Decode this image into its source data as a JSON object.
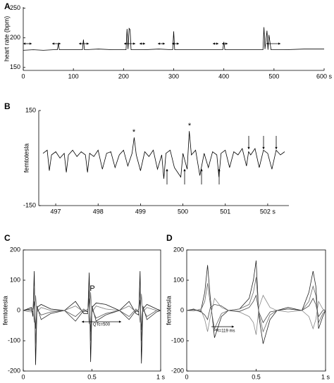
{
  "chart_data": [
    {
      "type": "line",
      "panel": "A",
      "y_label": "heart rate (bpm)",
      "color": "#000000",
      "x": [
        0,
        20,
        40,
        60,
        68,
        70,
        72,
        100,
        118,
        120,
        122,
        150,
        180,
        205,
        207,
        209,
        211,
        213,
        215,
        240,
        270,
        298,
        300,
        302,
        340,
        380,
        398,
        400,
        402,
        440,
        470,
        478,
        480,
        482,
        486,
        488,
        490,
        494,
        520,
        560,
        598,
        600
      ],
      "values": [
        179,
        180,
        179,
        180,
        180,
        190,
        180,
        180,
        180,
        197,
        180,
        181,
        180,
        180,
        215,
        181,
        216,
        214,
        180,
        180,
        181,
        180,
        211,
        180,
        180,
        180,
        180,
        193,
        180,
        180,
        180,
        180,
        218,
        181,
        212,
        180,
        205,
        180,
        180,
        181,
        181,
        181
      ],
      "xlim": [
        0,
        600
      ],
      "ylim": [
        145,
        252
      ],
      "xticks": [
        0,
        100,
        200,
        300,
        400,
        500,
        {
          "value": 600,
          "label": "600 s"
        }
      ],
      "yticks": [
        150,
        200,
        250
      ]
    },
    {
      "type": "line",
      "panel": "B",
      "y_label": "femtotesla",
      "color": "#000000",
      "annotations": [
        "*",
        "*"
      ],
      "x": [
        496.7,
        496.8,
        496.85,
        496.9,
        497.0,
        497.1,
        497.2,
        497.25,
        497.3,
        497.4,
        497.5,
        497.6,
        497.7,
        497.75,
        497.8,
        497.9,
        498.0,
        498.1,
        498.2,
        498.3,
        498.4,
        498.5,
        498.6,
        498.7,
        498.8,
        498.85,
        498.9,
        499.0,
        499.1,
        499.2,
        499.3,
        499.4,
        499.5,
        499.55,
        499.6,
        499.7,
        499.8,
        499.95,
        500.0,
        500.1,
        500.15,
        500.2,
        500.3,
        500.4,
        500.5,
        500.6,
        500.7,
        500.8,
        500.85,
        500.9,
        501.0,
        501.1,
        501.2,
        501.3,
        501.4,
        501.5,
        501.55,
        501.6,
        501.7,
        501.8,
        501.9,
        502.0,
        502.1,
        502.2,
        502.3,
        502.4
      ],
      "values": [
        15,
        25,
        -40,
        10,
        20,
        0,
        15,
        -45,
        10,
        25,
        5,
        20,
        10,
        -45,
        15,
        5,
        25,
        -35,
        15,
        20,
        -30,
        10,
        25,
        -25,
        15,
        65,
        10,
        -40,
        20,
        5,
        25,
        -35,
        10,
        -65,
        15,
        25,
        -30,
        -60,
        15,
        -35,
        85,
        10,
        25,
        -55,
        15,
        -30,
        20,
        10,
        -60,
        15,
        25,
        -30,
        20,
        10,
        30,
        -25,
        20,
        10,
        30,
        -30,
        25,
        15,
        -35,
        25,
        10,
        20
      ],
      "xlim": [
        496.6,
        502.5
      ],
      "ylim": [
        -150,
        150
      ],
      "xticks": [
        497,
        498,
        499,
        500,
        501,
        {
          "value": 502,
          "label": "502 s"
        }
      ],
      "yticks": [
        150,
        -150
      ]
    },
    {
      "type": "line",
      "panel": "C",
      "y_label": "femtotesla",
      "annotations": [
        "P",
        "QTc=500"
      ],
      "x": [
        0,
        0.03,
        0.06,
        0.07,
        0.08,
        0.09,
        0.1,
        0.13,
        0.2,
        0.3,
        0.38,
        0.44,
        0.47,
        0.48,
        0.49,
        0.5,
        0.53,
        0.6,
        0.7,
        0.77,
        0.82,
        0.84,
        0.85,
        0.86,
        0.87,
        0.9,
        0.97,
        1
      ],
      "series": [
        {
          "color": "#111111",
          "values": [
            0,
            5,
            10,
            -20,
            130,
            -180,
            10,
            20,
            5,
            0,
            30,
            -10,
            -10,
            125,
            -170,
            10,
            25,
            20,
            0,
            30,
            -10,
            -15,
            130,
            -175,
            5,
            20,
            5,
            0
          ]
        },
        {
          "color": "#555555",
          "values": [
            0,
            3,
            5,
            -10,
            80,
            -110,
            5,
            -15,
            -5,
            0,
            -20,
            5,
            -5,
            70,
            -100,
            5,
            -25,
            -10,
            0,
            -20,
            5,
            -5,
            75,
            -100,
            5,
            -20,
            0,
            0
          ]
        },
        {
          "color": "#777777",
          "values": [
            0,
            -3,
            -5,
            10,
            -40,
            50,
            -5,
            10,
            0,
            0,
            15,
            -5,
            5,
            -45,
            60,
            -5,
            15,
            5,
            0,
            15,
            -5,
            5,
            -40,
            55,
            -5,
            10,
            0,
            0
          ]
        },
        {
          "color": "#333333",
          "values": [
            0,
            2,
            0,
            -5,
            30,
            -60,
            15,
            -30,
            -10,
            0,
            -35,
            0,
            -5,
            40,
            -70,
            15,
            -35,
            -15,
            0,
            -30,
            0,
            -5,
            35,
            -65,
            15,
            -30,
            -5,
            0
          ]
        }
      ],
      "xlim": [
        0,
        1
      ],
      "ylim": [
        -200,
        200
      ],
      "xticks": [
        0,
        0.5,
        {
          "value": 1,
          "label": "1 s"
        }
      ],
      "yticks": [
        -200,
        -100,
        0,
        100,
        200
      ]
    },
    {
      "type": "line",
      "panel": "D",
      "y_label": "femtotesla",
      "annotations": [
        "PR=119 ms"
      ],
      "x": [
        0,
        0.05,
        0.1,
        0.13,
        0.15,
        0.17,
        0.2,
        0.25,
        0.3,
        0.38,
        0.45,
        0.48,
        0.5,
        0.52,
        0.55,
        0.6,
        0.65,
        0.73,
        0.83,
        0.88,
        0.91,
        0.93,
        0.95,
        0.98,
        1
      ],
      "series": [
        {
          "color": "#222222",
          "values": [
            0,
            5,
            -5,
            60,
            150,
            40,
            -90,
            -20,
            0,
            5,
            40,
            100,
            165,
            -20,
            -110,
            -30,
            0,
            10,
            0,
            60,
            130,
            80,
            -60,
            -20,
            0
          ]
        },
        {
          "color": "#666666",
          "values": [
            0,
            3,
            0,
            30,
            90,
            20,
            -60,
            -10,
            0,
            5,
            20,
            60,
            110,
            -10,
            -70,
            -15,
            0,
            5,
            0,
            30,
            80,
            50,
            -40,
            -10,
            0
          ]
        },
        {
          "color": "#888888",
          "values": [
            0,
            -2,
            5,
            -30,
            -70,
            -20,
            40,
            10,
            0,
            -5,
            -20,
            -40,
            -80,
            10,
            50,
            10,
            0,
            -5,
            0,
            -20,
            -60,
            -30,
            30,
            5,
            0
          ]
        },
        {
          "color": "#444444",
          "values": [
            0,
            2,
            -3,
            -15,
            -30,
            10,
            20,
            15,
            0,
            -3,
            10,
            30,
            50,
            -5,
            -40,
            -5,
            0,
            5,
            0,
            15,
            40,
            20,
            -20,
            0,
            0
          ]
        }
      ],
      "xlim": [
        0,
        1
      ],
      "ylim": [
        -200,
        200
      ],
      "xticks": [
        0,
        0.5,
        {
          "value": 1,
          "label": "1 s"
        }
      ],
      "yticks": [
        -200,
        -100,
        0,
        100,
        200
      ]
    }
  ]
}
